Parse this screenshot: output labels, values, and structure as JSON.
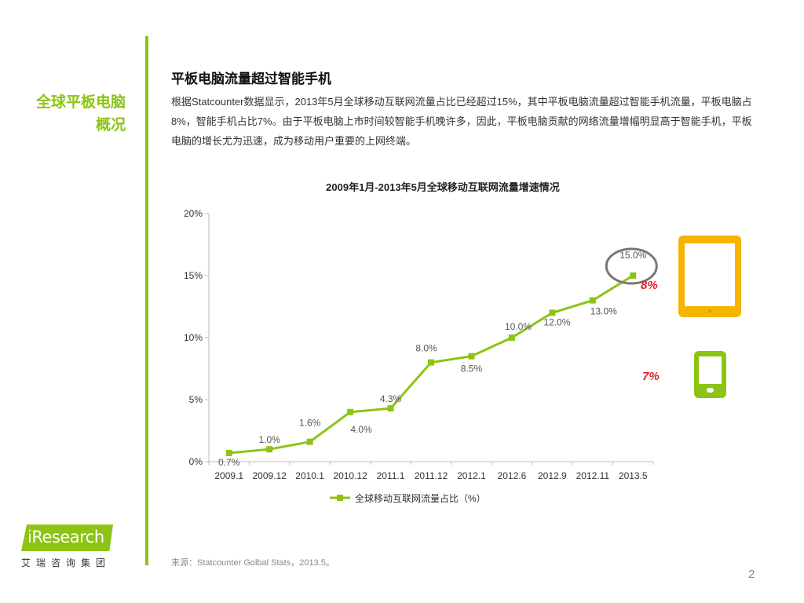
{
  "sidebar": {
    "title_line1": "全球平板电脑",
    "title_line2": "概况"
  },
  "heading": "平板电脑流量超过智能手机",
  "paragraph": "根据Statcounter数据显示，2013年5月全球移动互联网流量占比已经超过15%，其中平板电脑流量超过智能手机流量，平板电脑占8%，智能手机占比7%。由于平板电脑上市时间较智能手机晚许多，因此，平板电脑贡献的网络流量增幅明显高于智能手机，平板电脑的增长尤为迅速，成为移动用户重要的上网终端。",
  "chart_data": {
    "type": "line",
    "title": "2009年1月-2013年5月全球移动互联网流量增速情况",
    "categories": [
      "2009.1",
      "2009.12",
      "2010.1",
      "2010.12",
      "2011.1",
      "2011.12",
      "2012.1",
      "2012.6",
      "2012.9",
      "2012.11",
      "2013.5"
    ],
    "series": [
      {
        "name": "全球移动互联网流量占比（%）",
        "values": [
          0.7,
          1.0,
          1.6,
          4.0,
          4.3,
          8.0,
          8.5,
          10.0,
          12.0,
          13.0,
          15.0
        ],
        "color": "#8cc414"
      }
    ],
    "data_labels": [
      "0.7%",
      "1.0%",
      "1.6%",
      "4.0%",
      "4.3%",
      "8.0%",
      "8.5%",
      "10.0%",
      "12.0%",
      "13.0%",
      "15.0%"
    ],
    "y_ticks": [
      0,
      5,
      10,
      15,
      20
    ],
    "y_tick_labels": [
      "0%",
      "5%",
      "10%",
      "15%",
      "20%"
    ],
    "ylim": [
      0,
      20
    ],
    "xlabel": "",
    "ylabel": "",
    "legend": "bottom"
  },
  "devices": {
    "tablet_share": "8%",
    "phone_share": "7%"
  },
  "colors": {
    "accent": "#8cc414",
    "tablet": "#f5b400",
    "highlight": "#e02020"
  },
  "source": "来源：Statcounter Golbal Stats，2013.5。",
  "page_number": "2",
  "logo": {
    "brand": "iResearch",
    "subtitle": "艾瑞咨询集团"
  }
}
